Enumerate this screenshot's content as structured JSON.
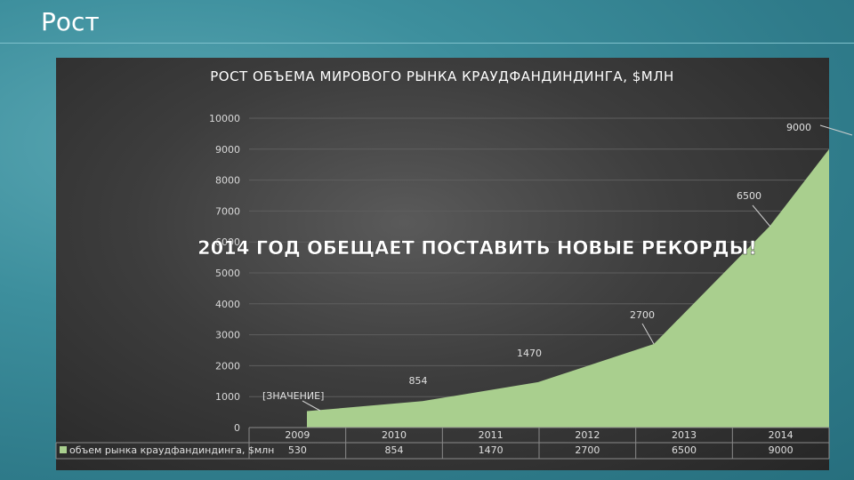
{
  "slide": {
    "title": "Рост"
  },
  "colors": {
    "area": "#a9cf8e",
    "background": "#2f7b8a",
    "panel": "#3d3d3d"
  },
  "chart_data": {
    "type": "area",
    "title": "РОСТ ОБЪЕМА МИРОВОГО РЫНКА  КРАУДФАНДИНДИНГА, $МЛН",
    "categories": [
      "2009",
      "2010",
      "2011",
      "2012",
      "2013",
      "2014"
    ],
    "series": [
      {
        "name": "объем рынка краудфандиндинга, $млн",
        "values": [
          530,
          854,
          1470,
          2700,
          6500,
          9000
        ]
      }
    ],
    "ylim": [
      0,
      10000
    ],
    "yticks": [
      "0",
      "1000",
      "2000",
      "3000",
      "4000",
      "5000",
      "6000",
      "7000",
      "8000",
      "9000",
      "10000"
    ],
    "data_labels": [
      "[ЗНАЧЕНИЕ]",
      "854",
      "1470",
      "2700",
      "6500",
      "9000"
    ],
    "annotation": "2014 ГОД ОБЕЩАЕТ ПОСТАВИТЬ НОВЫЕ РЕКОРДЫ!",
    "data_table": true,
    "grid": true
  }
}
